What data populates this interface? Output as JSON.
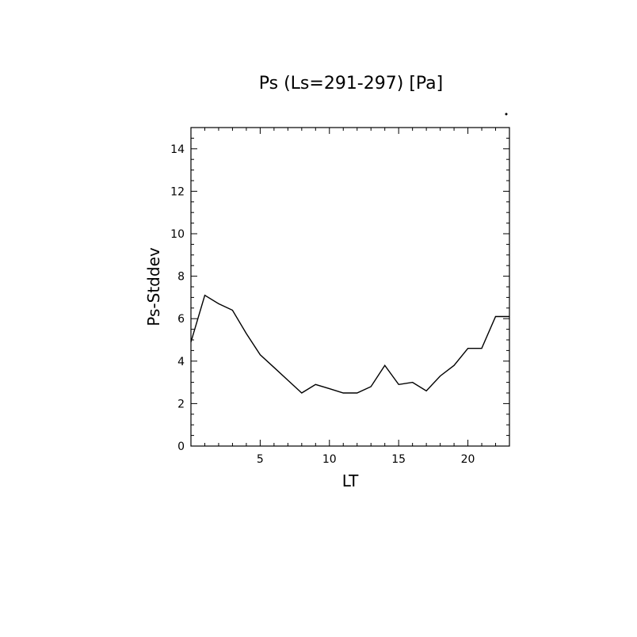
{
  "chart_data": {
    "type": "line",
    "title": "Ps (Ls=291-297) [Pa]",
    "xlabel": "LT",
    "ylabel": "Ps-Stddev",
    "xlim": [
      0,
      23
    ],
    "ylim": [
      0,
      15
    ],
    "xticks": [
      5,
      10,
      15,
      20
    ],
    "yticks": [
      0,
      2,
      4,
      6,
      8,
      10,
      12,
      14
    ],
    "grid": false,
    "series": [
      {
        "x": [
          0,
          1,
          2,
          3,
          4,
          5,
          6,
          7,
          8,
          9,
          10,
          11,
          12,
          13,
          14,
          15,
          16,
          17,
          18,
          19,
          20,
          21,
          22,
          23
        ],
        "values": [
          4.9,
          7.1,
          6.7,
          6.4,
          5.3,
          4.3,
          3.7,
          3.1,
          2.5,
          2.9,
          2.7,
          2.5,
          2.5,
          2.8,
          3.8,
          2.9,
          3.0,
          2.6,
          3.3,
          3.8,
          4.6,
          4.6,
          6.1,
          6.1
        ]
      }
    ]
  }
}
